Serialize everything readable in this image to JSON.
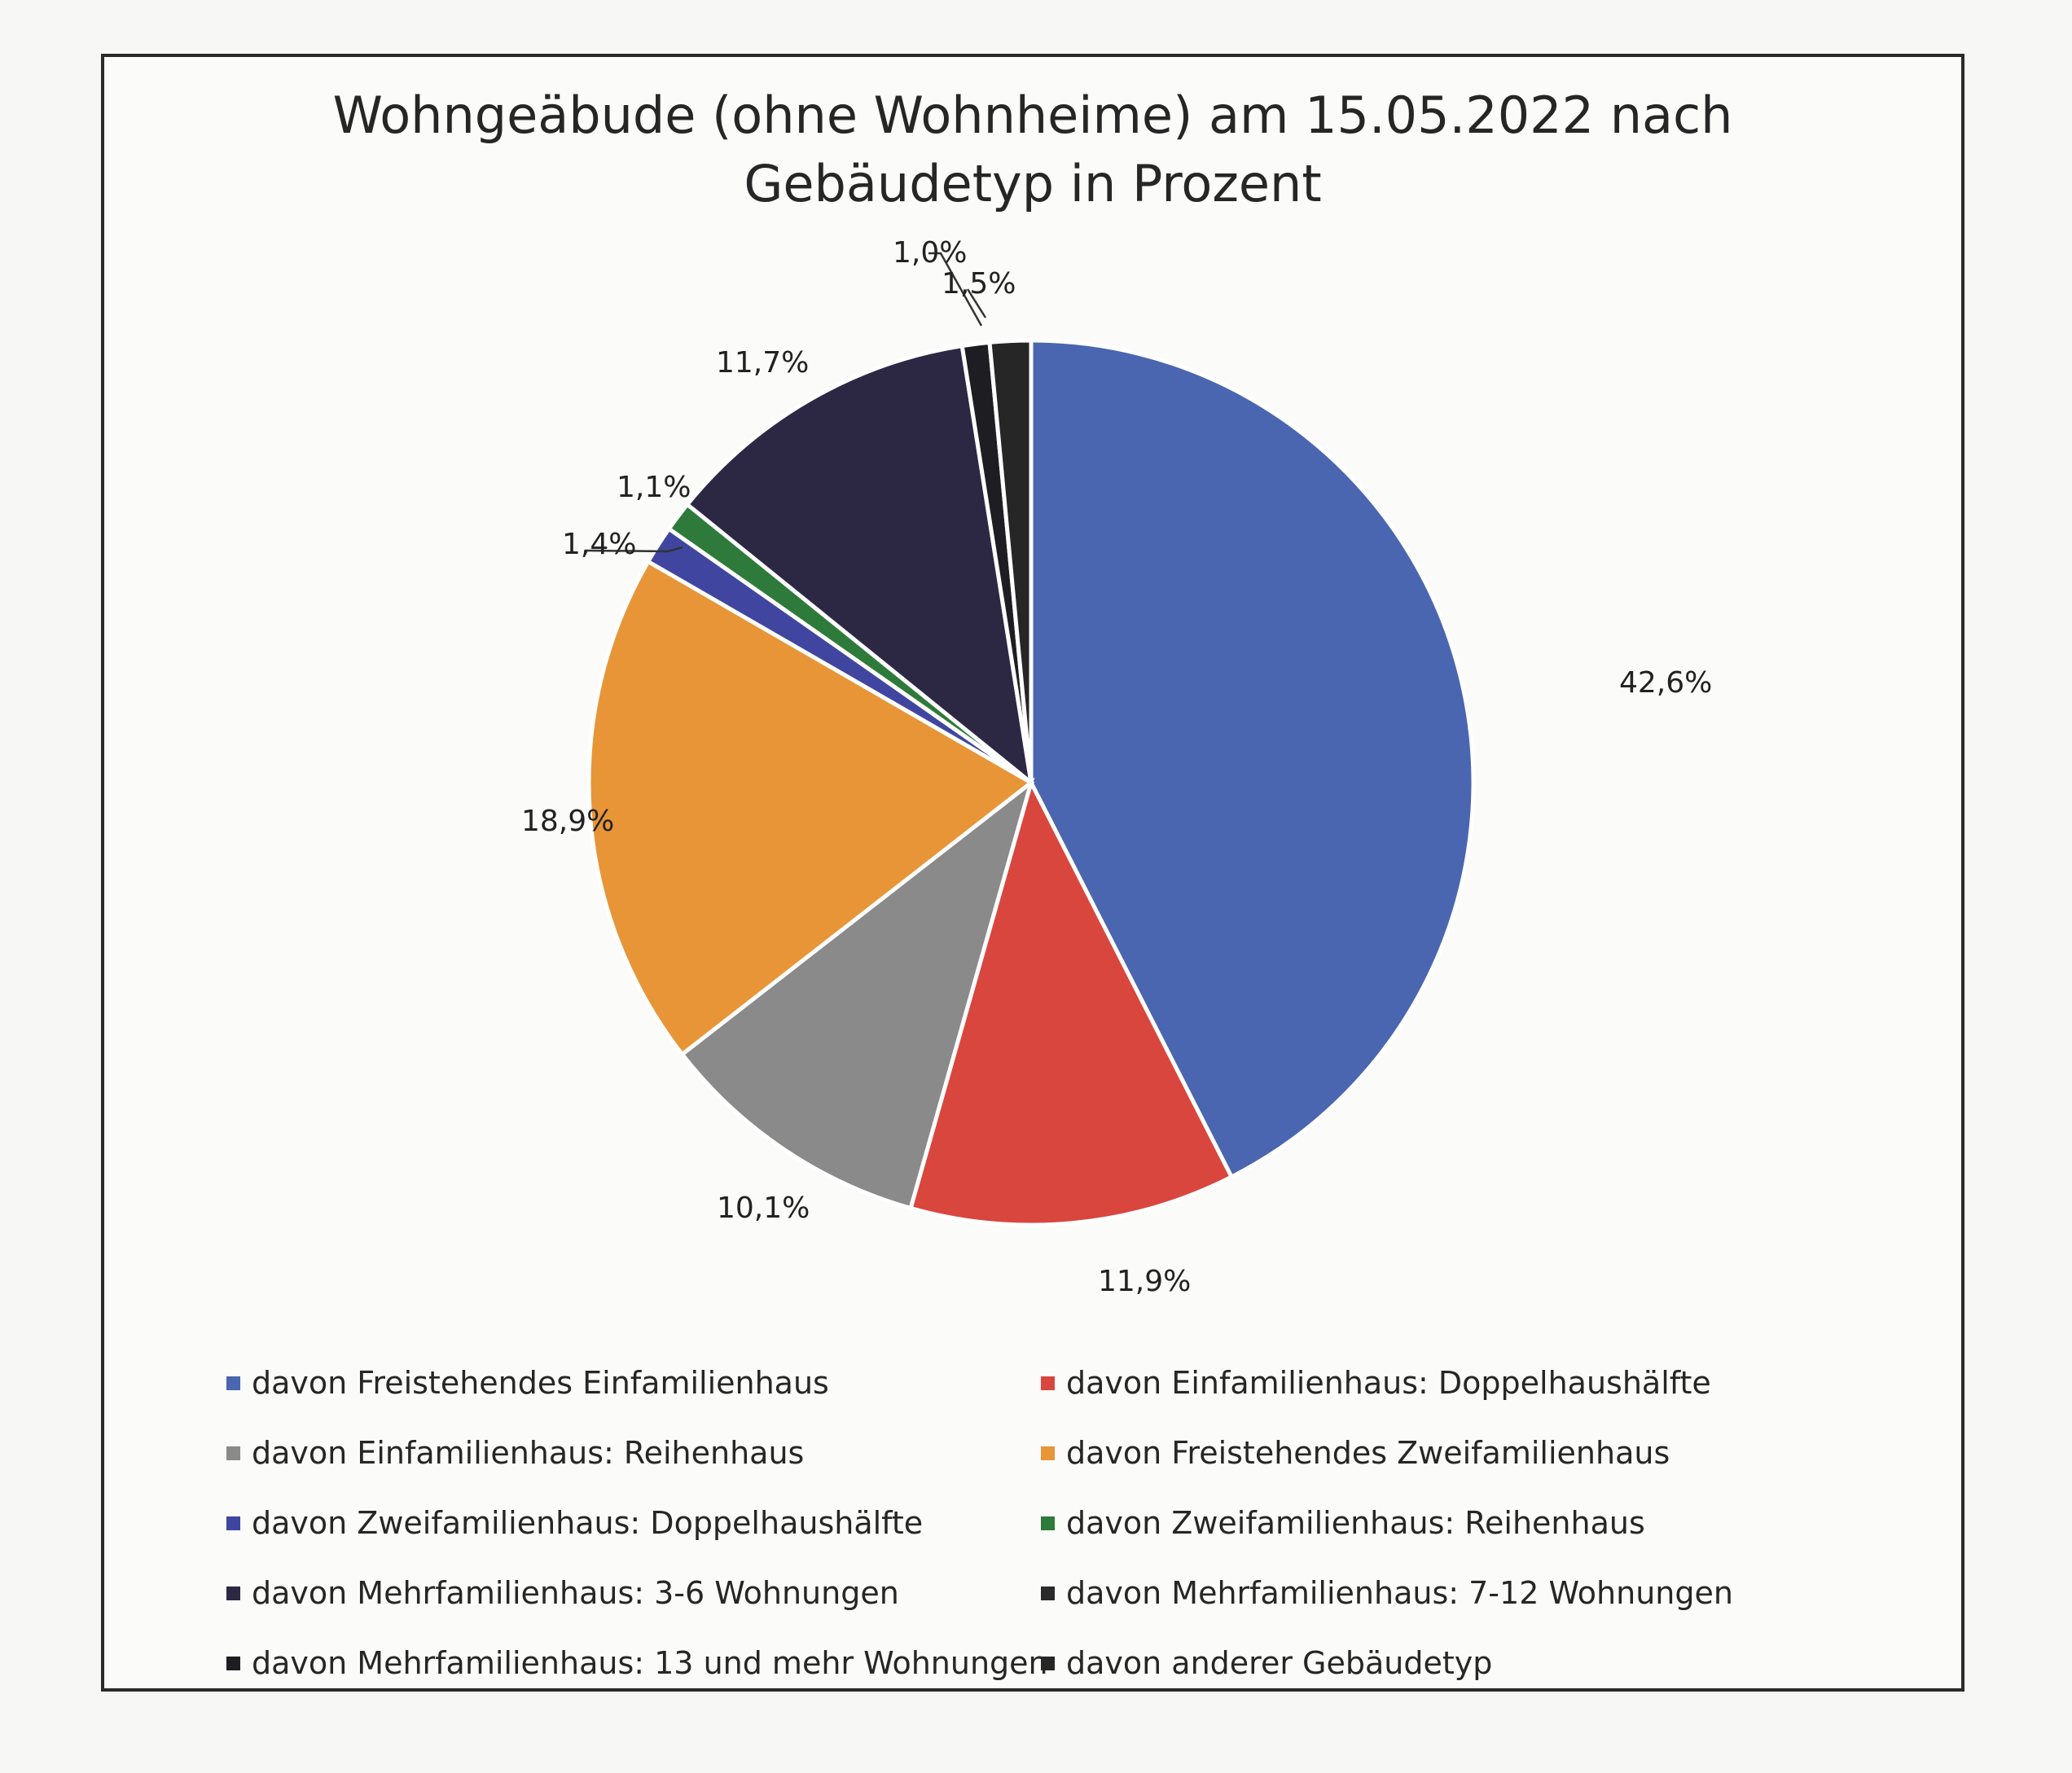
{
  "chart_data": {
    "type": "pie",
    "title": "Wohngeäbude (ohne Wohnheime) am 15.05.2022 nach\nGebäudetyp in Prozent",
    "series": [
      {
        "name": "davon Freistehendes Einfamilienhaus",
        "value": 42.6,
        "label": "42,6%",
        "color": "#4a66b0"
      },
      {
        "name": "davon Einfamilienhaus: Doppelhaushälfte",
        "value": 11.9,
        "label": "11,9%",
        "color": "#d9463e"
      },
      {
        "name": "davon Einfamilienhaus: Reihenhaus",
        "value": 10.1,
        "label": "10,1%",
        "color": "#8a8a8a"
      },
      {
        "name": "davon Freistehendes Zweifamilienhaus",
        "value": 18.9,
        "label": "18,9%",
        "color": "#e89538"
      },
      {
        "name": "davon Zweifamilienhaus: Doppelhaushälfte",
        "value": 1.4,
        "label": "1,4%",
        "color": "#4046a0"
      },
      {
        "name": "davon Zweifamilienhaus: Reihenhaus",
        "value": 1.1,
        "label": "1,1%",
        "color": "#2e7a3a"
      },
      {
        "name": "davon Mehrfamilienhaus: 3-6 Wohnungen",
        "value": 11.7,
        "label": "11,7%",
        "color": "#2c2844"
      },
      {
        "name": "davon Mehrfamilienhaus: 7-12 Wohnungen",
        "value": 0.0,
        "label": "",
        "color": "#2a2a2a"
      },
      {
        "name": "davon Mehrfamilienhaus: 13 und mehr Wohnungen",
        "value": 1.0,
        "label": "1,0%",
        "color": "#1e1e22"
      },
      {
        "name": "davon anderer Gebäudetyp",
        "value": 1.5,
        "label": "1,5%",
        "color": "#262626"
      }
    ],
    "legend_position": "bottom",
    "start_angle": "12 o'clock",
    "direction": "clockwise"
  }
}
